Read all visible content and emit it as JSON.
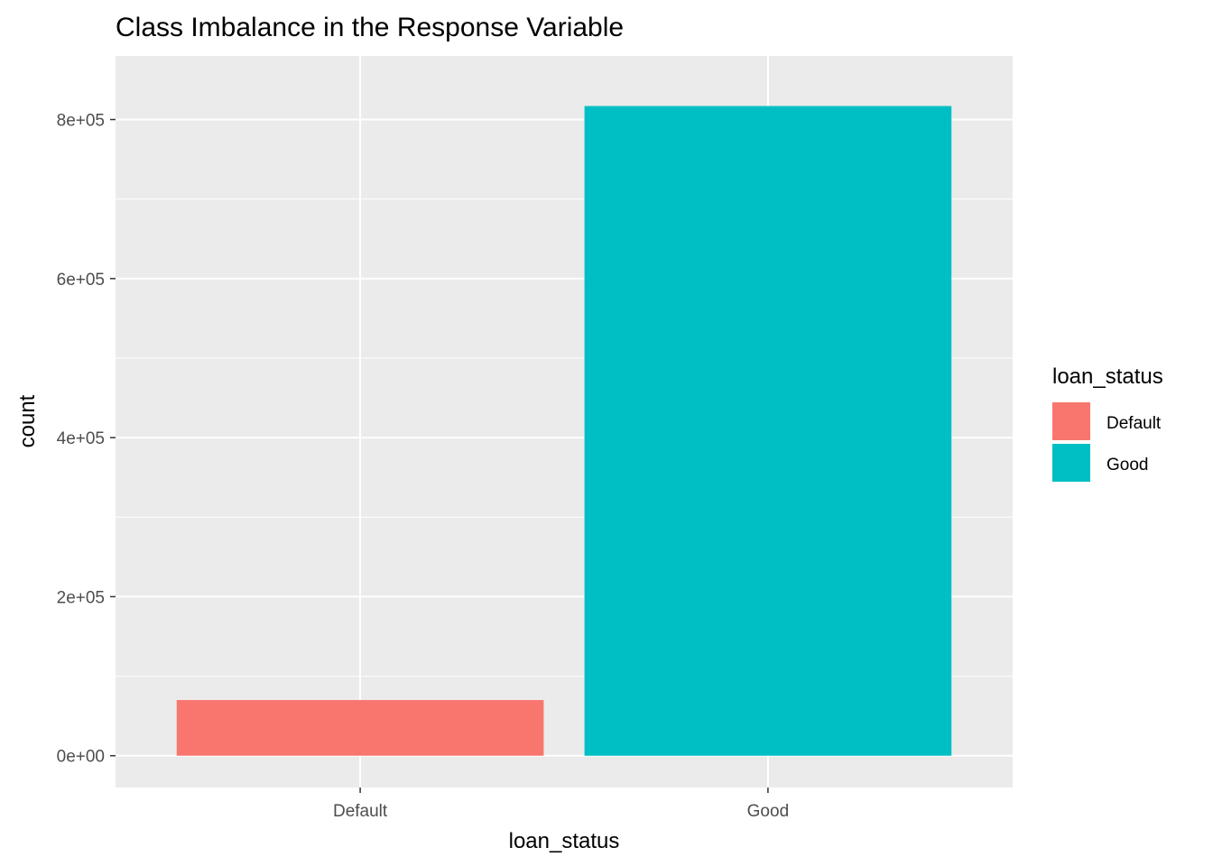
{
  "chart_data": {
    "type": "bar",
    "title": "Class Imbalance in the Response Variable",
    "xlabel": "loan_status",
    "ylabel": "count",
    "categories": [
      "Default",
      "Good"
    ],
    "values": [
      70000,
      817000
    ],
    "ylim": [
      -40000,
      880000
    ],
    "yticks": [
      0,
      200000,
      400000,
      600000,
      800000
    ],
    "ytick_labels": [
      "0e+00",
      "2e+05",
      "4e+05",
      "6e+05",
      "8e+05"
    ],
    "colors": [
      "#F8766D",
      "#00BFC4"
    ],
    "panel_background": "#EBEBEB",
    "grid": true,
    "legend": {
      "title": "loan_status",
      "position": "right",
      "entries": [
        {
          "label": "Default",
          "color": "#F8766D"
        },
        {
          "label": "Good",
          "color": "#00BFC4"
        }
      ]
    }
  }
}
